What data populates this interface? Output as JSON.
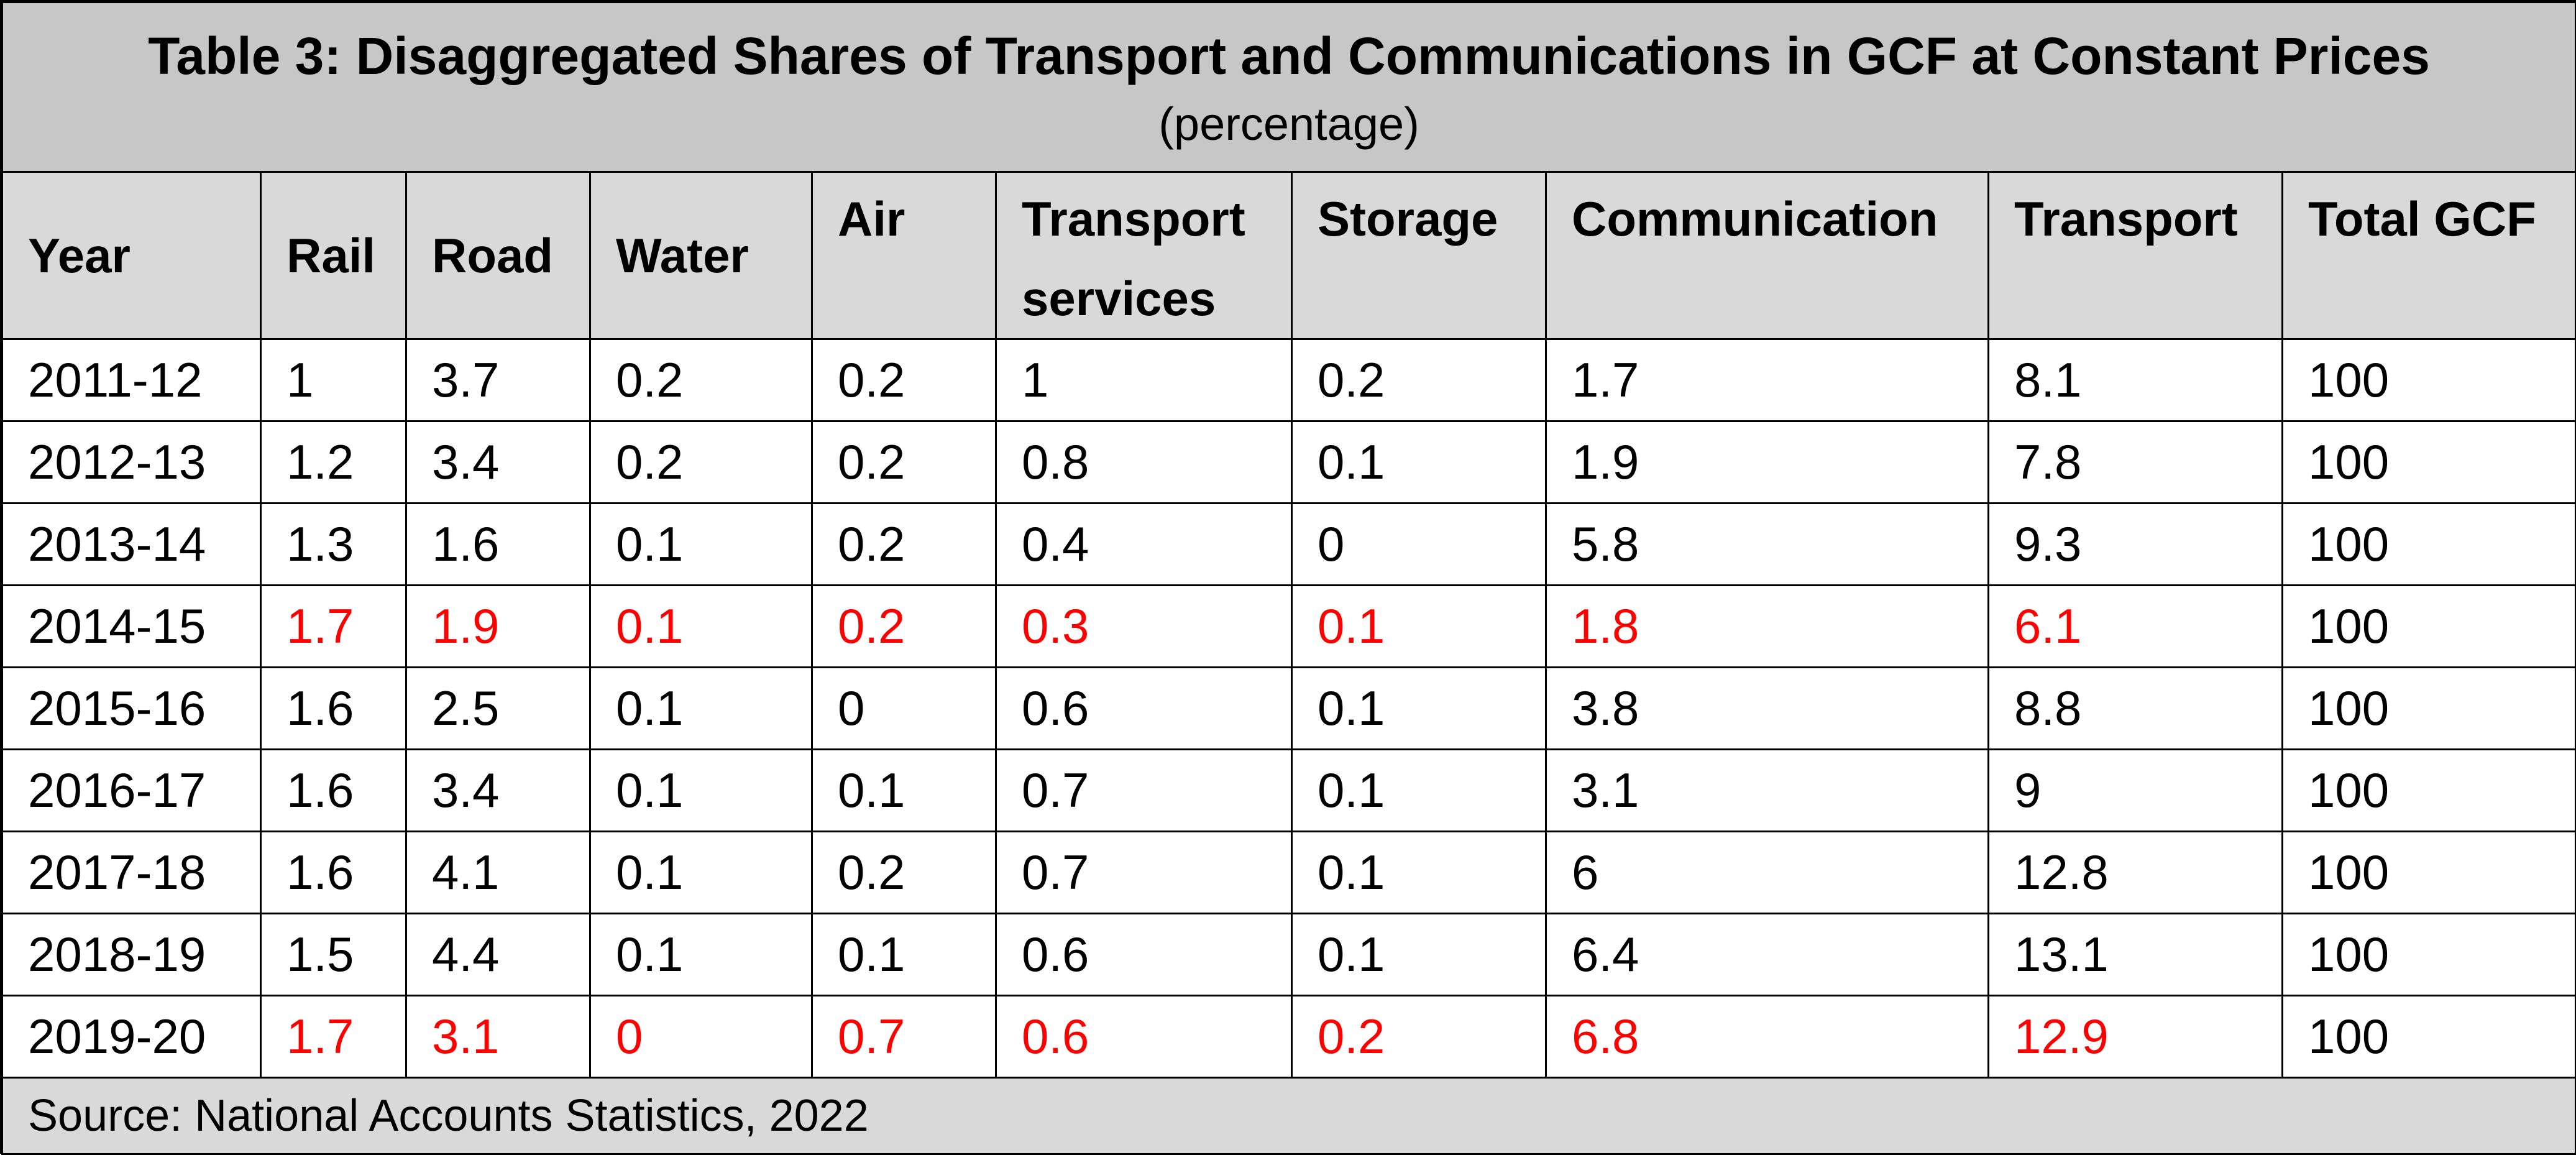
{
  "title": "Table 3: Disaggregated Shares of Transport and Communications in GCF at Constant Prices",
  "subtitle": "(percentage)",
  "columns": [
    "Year",
    "Rail",
    "Road",
    "Water",
    "Air",
    "Transport services",
    "Storage",
    "Communication",
    "Transport",
    "Total GCF"
  ],
  "rows": [
    {
      "year": "2011-12",
      "values": [
        "1",
        "3.7",
        "0.2",
        "0.2",
        "1",
        "0.2",
        "1.7",
        "8.1",
        "100"
      ],
      "highlight": false
    },
    {
      "year": "2012-13",
      "values": [
        "1.2",
        "3.4",
        "0.2",
        "0.2",
        "0.8",
        "0.1",
        "1.9",
        "7.8",
        "100"
      ],
      "highlight": false
    },
    {
      "year": "2013-14",
      "values": [
        "1.3",
        "1.6",
        "0.1",
        "0.2",
        "0.4",
        "0",
        "5.8",
        "9.3",
        "100"
      ],
      "highlight": false
    },
    {
      "year": "2014-15",
      "values": [
        "1.7",
        "1.9",
        "0.1",
        "0.2",
        "0.3",
        "0.1",
        "1.8",
        "6.1",
        "100"
      ],
      "highlight": true
    },
    {
      "year": "2015-16",
      "values": [
        "1.6",
        "2.5",
        "0.1",
        "0",
        "0.6",
        "0.1",
        "3.8",
        "8.8",
        "100"
      ],
      "highlight": false
    },
    {
      "year": "2016-17",
      "values": [
        "1.6",
        "3.4",
        "0.1",
        "0.1",
        "0.7",
        "0.1",
        "3.1",
        "9",
        "100"
      ],
      "highlight": false
    },
    {
      "year": "2017-18",
      "values": [
        "1.6",
        "4.1",
        "0.1",
        "0.2",
        "0.7",
        "0.1",
        "6",
        "12.8",
        "100"
      ],
      "highlight": false
    },
    {
      "year": "2018-19",
      "values": [
        "1.5",
        "4.4",
        "0.1",
        "0.1",
        "0.6",
        "0.1",
        "6.4",
        "13.1",
        "100"
      ],
      "highlight": false
    },
    {
      "year": "2019-20",
      "values": [
        "1.7",
        "3.1",
        "0",
        "0.7",
        "0.6",
        "0.2",
        "6.8",
        "12.9",
        "100"
      ],
      "highlight": true
    }
  ],
  "source": "Source: National Accounts Statistics, 2022",
  "colors": {
    "title_bg": "#c7c7c7",
    "header_bg": "#d9d9d9",
    "highlight_text": "#ff0000"
  }
}
